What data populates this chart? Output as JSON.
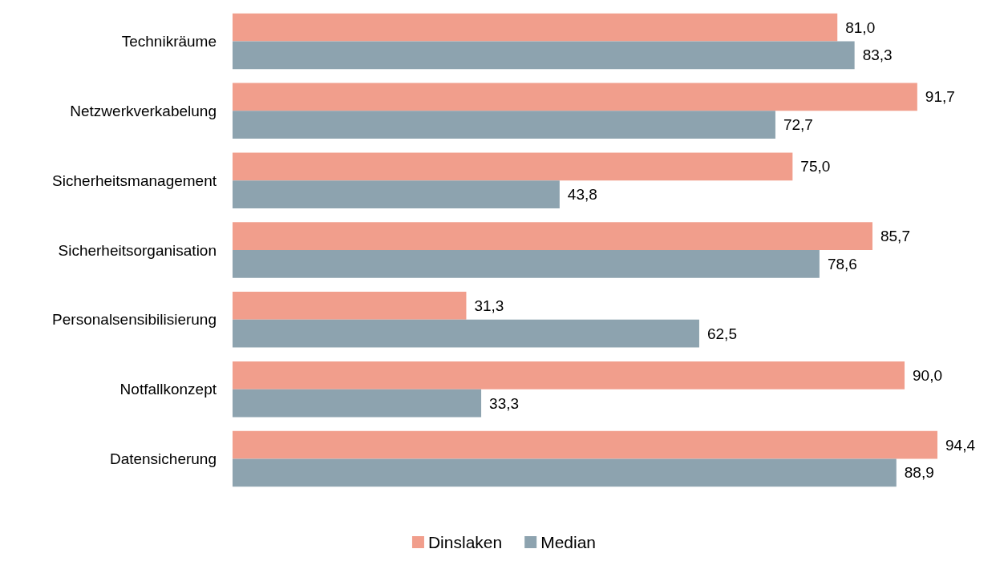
{
  "chart_data": {
    "type": "bar",
    "orientation": "horizontal",
    "categories": [
      "Technikräume",
      "Netzwerkverkabelung",
      "Sicherheitsmanagement",
      "Sicherheitsorganisation",
      "Personalsensibilisierung",
      "Notfallkonzept",
      "Datensicherung"
    ],
    "series": [
      {
        "name": "Dinslaken",
        "color": "#f19e8c",
        "values": [
          81.0,
          91.7,
          75.0,
          85.7,
          31.3,
          90.0,
          94.4
        ],
        "value_labels": [
          "81,0",
          "91,7",
          "75,0",
          "85,7",
          "31,3",
          "90,0",
          "94,4"
        ]
      },
      {
        "name": "Median",
        "color": "#8da3af",
        "values": [
          83.3,
          72.7,
          43.8,
          78.6,
          62.5,
          33.3,
          88.9
        ],
        "value_labels": [
          "83,3",
          "72,7",
          "43,8",
          "78,6",
          "62,5",
          "33,3",
          "88,9"
        ]
      }
    ],
    "legend": "bottom"
  }
}
